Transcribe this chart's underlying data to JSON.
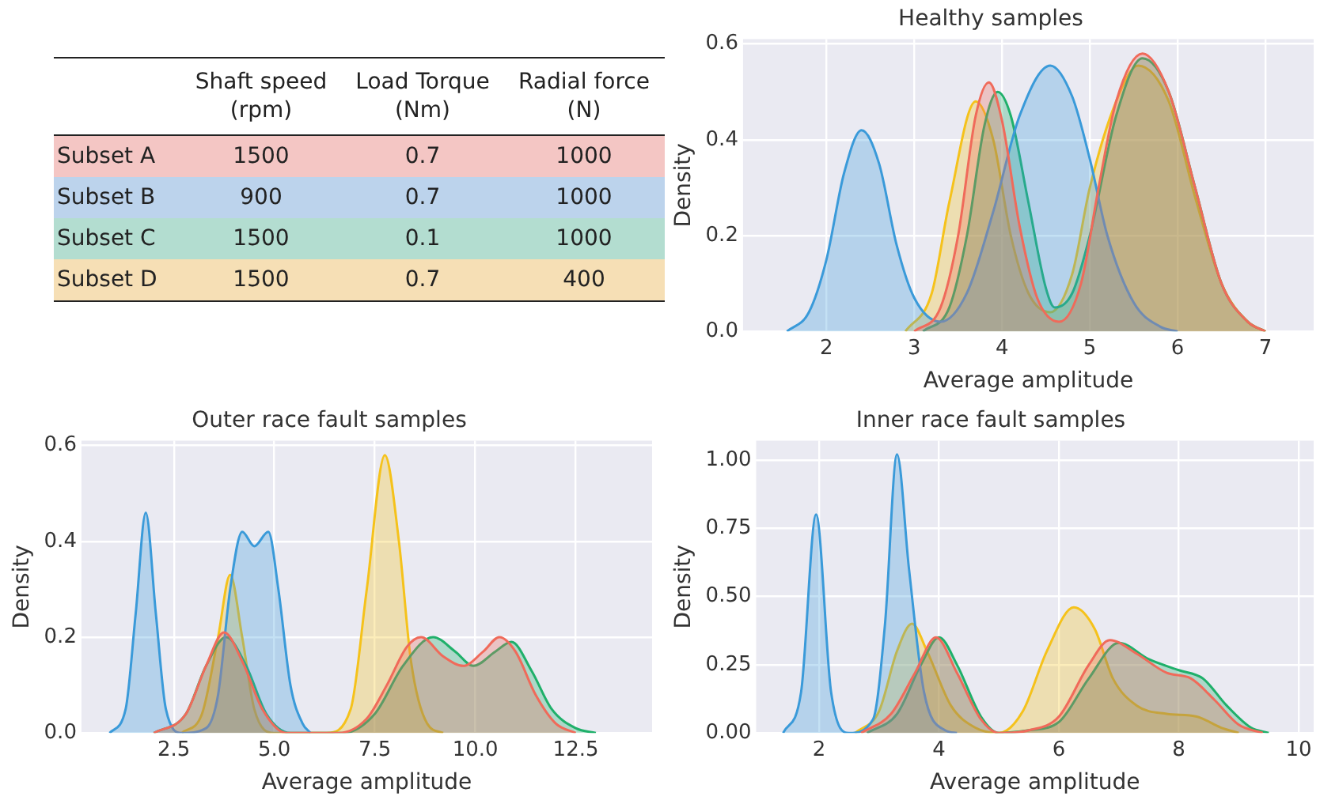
{
  "chart_data": [
    {
      "type": "other",
      "data_labels": true,
      "categories": [
        "Subset A",
        "Subset B",
        "Subset C",
        "Subset D"
      ],
      "colors": [
        "#f4c6c4",
        "#bcd3ec",
        "#b3ddd0",
        "#f6dfb5"
      ],
      "series": [
        {
          "name": "Shaft speed (rpm)",
          "colors": [
            "#f4c6c4",
            "#bcd3ec",
            "#b3ddd0",
            "#f6dfb5"
          ],
          "values": [
            1500,
            900,
            1500,
            1500
          ]
        },
        {
          "name": "Load Torque (Nm)",
          "colors": [
            "#f4c6c4",
            "#bcd3ec",
            "#b3ddd0",
            "#f6dfb5"
          ],
          "values": [
            0.7,
            0.7,
            0.1,
            0.7
          ]
        },
        {
          "name": "Radial force (N)",
          "colors": [
            "#f4c6c4",
            "#bcd3ec",
            "#b3ddd0",
            "#f6dfb5"
          ],
          "values": [
            1000,
            1000,
            1000,
            400
          ]
        }
      ]
    },
    {
      "type": "area",
      "title": "Healthy samples",
      "xlabel": "Average amplitude",
      "ylabel": "Density",
      "xlim": [
        1.05,
        7.55
      ],
      "ylim": [
        0,
        0.61
      ],
      "xticks": [
        2,
        3,
        4,
        5,
        6,
        7
      ],
      "yticks": [
        {
          "value": 0,
          "label": "0.0"
        },
        0.2,
        0.4,
        0.6
      ],
      "grid": true,
      "series": [
        {
          "color": "#f06a5a",
          "x": [
            3.0,
            3.3,
            3.5,
            3.7,
            3.85,
            4.0,
            4.2,
            4.4,
            4.65,
            4.9,
            5.1,
            5.3,
            5.6,
            5.9,
            6.2,
            6.5,
            6.8,
            7.0
          ],
          "values": [
            0,
            0.05,
            0.2,
            0.45,
            0.52,
            0.44,
            0.22,
            0.07,
            0.02,
            0.1,
            0.3,
            0.48,
            0.58,
            0.5,
            0.3,
            0.1,
            0.02,
            0
          ]
        },
        {
          "color": "#3a9ad9",
          "x": [
            1.55,
            1.8,
            2.0,
            2.2,
            2.4,
            2.6,
            2.8,
            3.0,
            3.3,
            3.6,
            3.9,
            4.2,
            4.55,
            4.8,
            5.0,
            5.2,
            5.5,
            5.8,
            6.0
          ],
          "values": [
            0,
            0.04,
            0.15,
            0.33,
            0.42,
            0.35,
            0.18,
            0.07,
            0.02,
            0.08,
            0.25,
            0.45,
            0.555,
            0.49,
            0.36,
            0.2,
            0.06,
            0.01,
            0
          ]
        },
        {
          "color": "#1fb06a",
          "x": [
            3.1,
            3.4,
            3.6,
            3.8,
            3.95,
            4.1,
            4.3,
            4.5,
            4.6,
            4.8,
            5.0,
            5.3,
            5.6,
            5.9,
            6.2,
            6.5,
            6.8,
            7.0
          ],
          "values": [
            0,
            0.05,
            0.2,
            0.43,
            0.5,
            0.45,
            0.27,
            0.09,
            0.05,
            0.08,
            0.2,
            0.45,
            0.57,
            0.5,
            0.3,
            0.1,
            0.02,
            0
          ]
        },
        {
          "color": "#f5c21b",
          "x": [
            2.9,
            3.2,
            3.4,
            3.7,
            3.9,
            4.1,
            4.3,
            4.55,
            4.8,
            5.0,
            5.3,
            5.55,
            5.9,
            6.2,
            6.5,
            6.8,
            7.0
          ],
          "values": [
            0,
            0.08,
            0.27,
            0.48,
            0.4,
            0.2,
            0.08,
            0.04,
            0.12,
            0.3,
            0.48,
            0.555,
            0.48,
            0.28,
            0.1,
            0.02,
            0
          ]
        }
      ]
    },
    {
      "type": "area",
      "title": "Outer race fault samples",
      "xlabel": "Average amplitude",
      "ylabel": "Density",
      "xlim": [
        0.2,
        14.4
      ],
      "ylim": [
        0,
        0.61
      ],
      "xticks": [
        2.5,
        {
          "value": 5,
          "label": "5.0"
        },
        7.5,
        {
          "value": 10,
          "label": "10.0"
        },
        12.5
      ],
      "yticks": [
        {
          "value": 0,
          "label": "0.0"
        },
        0.2,
        0.4,
        0.6
      ],
      "grid": true,
      "series": [
        {
          "color": "#f06a5a",
          "x": [
            2.0,
            2.8,
            3.3,
            3.75,
            4.2,
            4.7,
            5.3,
            6.6,
            7.3,
            7.8,
            8.3,
            8.65,
            9.2,
            9.7,
            10.2,
            10.6,
            11.0,
            11.5,
            12.0,
            12.5
          ],
          "values": [
            0,
            0.04,
            0.14,
            0.21,
            0.15,
            0.05,
            0,
            0,
            0.03,
            0.1,
            0.18,
            0.2,
            0.16,
            0.14,
            0.17,
            0.2,
            0.17,
            0.08,
            0.02,
            0
          ]
        },
        {
          "color": "#3a9ad9",
          "x": [
            0.9,
            1.3,
            1.55,
            1.8,
            2.05,
            2.3,
            2.7,
            3.3,
            3.6,
            3.9,
            4.2,
            4.5,
            4.85,
            5.1,
            5.4,
            5.7,
            5.9
          ],
          "values": [
            0,
            0.05,
            0.25,
            0.46,
            0.25,
            0.05,
            0,
            0.01,
            0.08,
            0.3,
            0.42,
            0.39,
            0.42,
            0.3,
            0.1,
            0.02,
            0
          ]
        },
        {
          "color": "#1fb06a",
          "x": [
            2.0,
            2.8,
            3.3,
            3.8,
            4.3,
            4.8,
            5.4,
            6.7,
            7.5,
            8.2,
            8.95,
            9.5,
            9.95,
            10.5,
            10.9,
            11.4,
            11.9,
            12.5,
            13.0
          ],
          "values": [
            0,
            0.04,
            0.14,
            0.2,
            0.14,
            0.04,
            0,
            0,
            0.04,
            0.14,
            0.2,
            0.17,
            0.14,
            0.17,
            0.19,
            0.13,
            0.05,
            0.01,
            0
          ]
        },
        {
          "color": "#f5c21b",
          "x": [
            2.7,
            3.2,
            3.6,
            3.9,
            4.2,
            4.5,
            5.0,
            6.3,
            6.9,
            7.3,
            7.75,
            8.1,
            8.4,
            8.8,
            9.2
          ],
          "values": [
            0,
            0.04,
            0.2,
            0.33,
            0.2,
            0.05,
            0,
            0,
            0.05,
            0.3,
            0.58,
            0.4,
            0.15,
            0.02,
            0
          ]
        }
      ]
    },
    {
      "type": "area",
      "title": "Inner race fault samples",
      "xlabel": "Average amplitude",
      "ylabel": "Density",
      "xlim": [
        0.95,
        10.25
      ],
      "ylim": [
        0,
        1.07
      ],
      "xticks": [
        2,
        4,
        6,
        8,
        10
      ],
      "yticks": [
        {
          "value": 0,
          "label": "0.00"
        },
        {
          "value": 0.25,
          "label": "0.25"
        },
        {
          "value": 0.5,
          "label": "0.50"
        },
        {
          "value": 0.75,
          "label": "0.75"
        },
        {
          "value": 1,
          "label": "1.00"
        }
      ],
      "grid": true,
      "series": [
        {
          "color": "#f06a5a",
          "x": [
            2.7,
            3.2,
            3.6,
            3.95,
            4.3,
            4.7,
            5.0,
            5.5,
            6.0,
            6.5,
            6.85,
            7.3,
            7.8,
            8.2,
            8.6,
            9.0,
            9.4
          ],
          "values": [
            0,
            0.07,
            0.22,
            0.35,
            0.22,
            0.05,
            0,
            0.01,
            0.06,
            0.25,
            0.34,
            0.29,
            0.22,
            0.2,
            0.12,
            0.03,
            0
          ]
        },
        {
          "color": "#3a9ad9",
          "x": [
            1.4,
            1.7,
            1.95,
            2.2,
            2.5,
            2.9,
            3.1,
            3.3,
            3.5,
            3.75,
            4.1,
            4.3
          ],
          "values": [
            0,
            0.15,
            0.8,
            0.15,
            0,
            0.05,
            0.4,
            1.02,
            0.6,
            0.15,
            0.01,
            0
          ]
        },
        {
          "color": "#1fb06a",
          "x": [
            2.8,
            3.3,
            3.7,
            4.0,
            4.3,
            4.7,
            5.0,
            5.5,
            6.0,
            6.5,
            7.0,
            7.5,
            8.0,
            8.4,
            8.8,
            9.2,
            9.5
          ],
          "values": [
            0,
            0.07,
            0.25,
            0.35,
            0.25,
            0.06,
            0,
            0.01,
            0.04,
            0.2,
            0.33,
            0.27,
            0.23,
            0.2,
            0.1,
            0.02,
            0
          ]
        },
        {
          "color": "#f5c21b",
          "x": [
            2.6,
            3.0,
            3.3,
            3.55,
            3.8,
            4.2,
            4.6,
            5.0,
            5.4,
            5.8,
            6.25,
            6.6,
            6.9,
            7.3,
            7.8,
            8.3,
            8.7,
            9.0
          ],
          "values": [
            0,
            0.08,
            0.3,
            0.4,
            0.3,
            0.1,
            0.02,
            0,
            0.08,
            0.3,
            0.46,
            0.38,
            0.2,
            0.1,
            0.07,
            0.06,
            0.02,
            0
          ]
        }
      ]
    }
  ]
}
